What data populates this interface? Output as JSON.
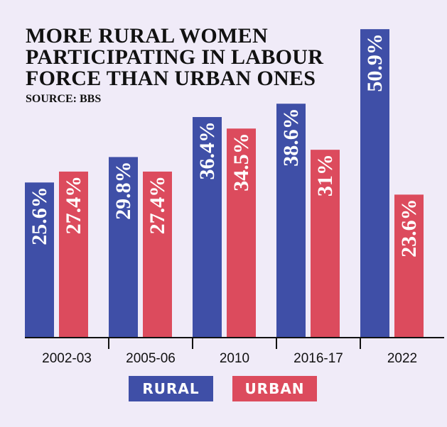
{
  "title_lines": [
    "MORE RURAL WOMEN",
    "PARTICIPATING IN LABOUR",
    "FORCE THAN URBAN ONES"
  ],
  "source": "SOURCE: BBS",
  "chart_data": {
    "type": "bar",
    "title": "MORE RURAL WOMEN PARTICIPATING IN LABOUR FORCE THAN URBAN ONES",
    "categories": [
      "2002-03",
      "2005-06",
      "2010",
      "2016-17",
      "2022"
    ],
    "series": [
      {
        "name": "RURAL",
        "color": "#3f4fa7",
        "values": [
          25.6,
          29.8,
          36.4,
          38.6,
          50.9
        ],
        "labels": [
          "25.6%",
          "29.8%",
          "36.4%",
          "38.6%",
          "50.9%"
        ]
      },
      {
        "name": "URBAN",
        "color": "#dc4b5d",
        "values": [
          27.4,
          27.4,
          34.5,
          31,
          23.6
        ],
        "labels": [
          "27.4%",
          "27.4%",
          "34.5%",
          "31%",
          "23.6%"
        ]
      }
    ],
    "xlabel": "",
    "ylabel": "",
    "ylim": [
      0,
      51.5
    ],
    "grid": false,
    "legend": "bottom-center"
  }
}
